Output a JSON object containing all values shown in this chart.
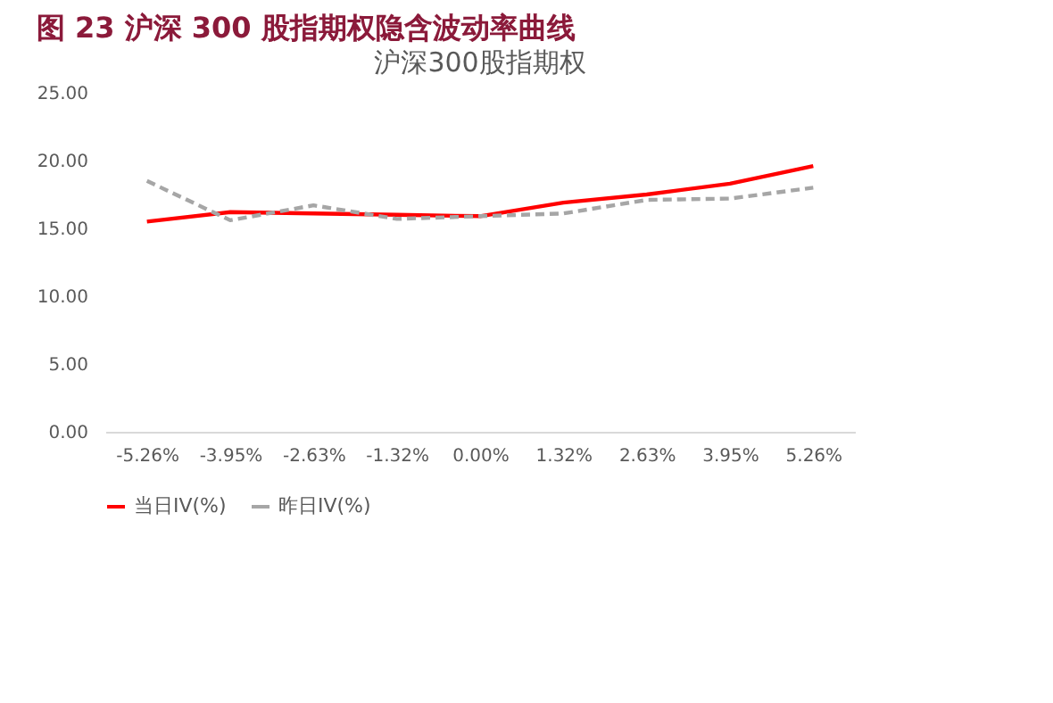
{
  "chart_data": {
    "type": "line",
    "title": "图 23  沪深 300 股指期权隐含波动率曲线",
    "subtitle": "沪深300股指期权",
    "categories": [
      "-5.26%",
      "-3.95%",
      "-2.63%",
      "-1.32%",
      "0.00%",
      "1.32%",
      "2.63%",
      "3.95%",
      "5.26%"
    ],
    "series": [
      {
        "name": "当日IV(%)",
        "color": "#ff0000",
        "line_style": "solid",
        "values": [
          15.5,
          16.2,
          16.1,
          16.0,
          15.9,
          16.9,
          17.5,
          18.3,
          19.6
        ]
      },
      {
        "name": "昨日IV(%)",
        "color": "#a6a6a6",
        "line_style": "dashed",
        "values": [
          18.5,
          15.6,
          16.7,
          15.7,
          15.9,
          16.1,
          17.1,
          17.2,
          18.0
        ]
      }
    ],
    "ylim": [
      0,
      25
    ],
    "yticks": [
      {
        "value": 0,
        "label": "0.00"
      },
      {
        "value": 5,
        "label": "5.00"
      },
      {
        "value": 10,
        "label": "10.00"
      },
      {
        "value": 15,
        "label": "15.00"
      },
      {
        "value": 20,
        "label": "20.00"
      },
      {
        "value": 25,
        "label": "25.00"
      }
    ],
    "grid": false,
    "legend": "bottom",
    "marker": "none"
  }
}
